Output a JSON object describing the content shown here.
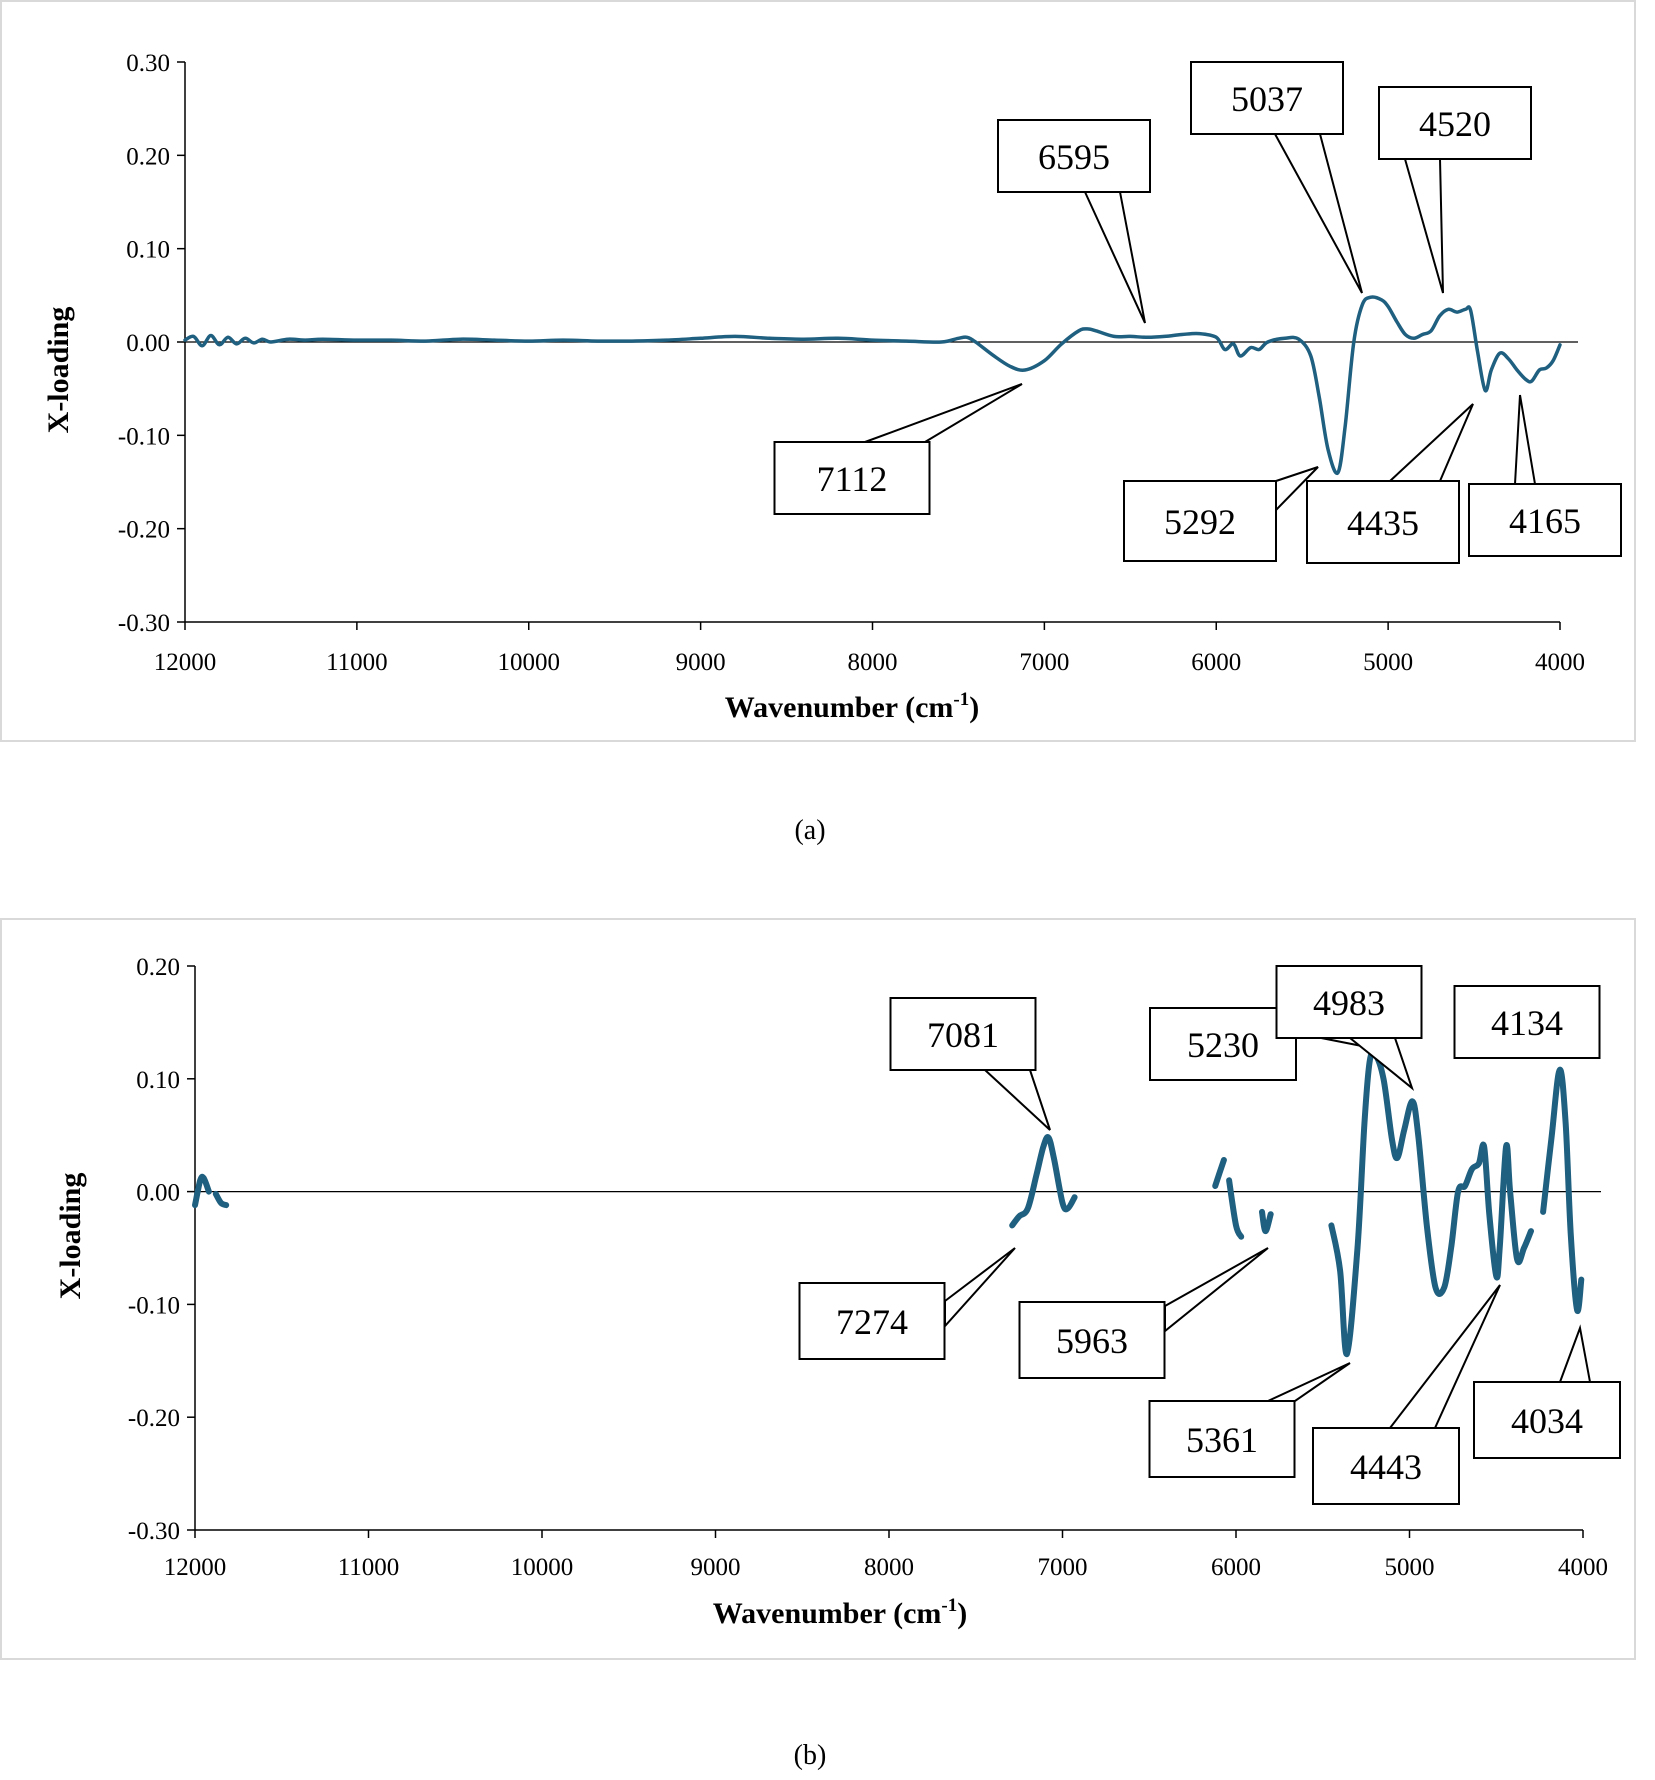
{
  "chart_data": [
    {
      "type": "line",
      "caption": "(a)",
      "xlabel": "Wavenumber (cm",
      "xlabel_sup": "-1",
      "xlabel_tail": ")",
      "ylabel": "X-loading",
      "xlim": [
        12000,
        4000
      ],
      "ylim": [
        -0.3,
        0.3
      ],
      "yticks": [
        "0.30",
        "0.20",
        "0.10",
        "0.00",
        "-0.10",
        "-0.20",
        "-0.30"
      ],
      "ytick_values": [
        0.3,
        0.2,
        0.1,
        0.0,
        -0.1,
        -0.2,
        -0.3
      ],
      "xticks": [
        "12000",
        "11000",
        "10000",
        "9000",
        "8000",
        "7000",
        "6000",
        "5000",
        "4000"
      ],
      "xtick_values": [
        12000,
        11000,
        10000,
        9000,
        8000,
        7000,
        6000,
        5000,
        4000
      ],
      "series": [
        {
          "name": "X-loading",
          "color": "#1f5f7f",
          "points": [
            [
              12000,
              0.002
            ],
            [
              11950,
              0.006
            ],
            [
              11900,
              -0.004
            ],
            [
              11850,
              0.007
            ],
            [
              11800,
              -0.003
            ],
            [
              11750,
              0.005
            ],
            [
              11700,
              -0.002
            ],
            [
              11650,
              0.004
            ],
            [
              11600,
              -0.001
            ],
            [
              11550,
              0.003
            ],
            [
              11500,
              0.0
            ],
            [
              11400,
              0.003
            ],
            [
              11300,
              0.002
            ],
            [
              11200,
              0.003
            ],
            [
              11000,
              0.002
            ],
            [
              10800,
              0.002
            ],
            [
              10600,
              0.001
            ],
            [
              10400,
              0.003
            ],
            [
              10200,
              0.002
            ],
            [
              10000,
              0.001
            ],
            [
              9800,
              0.002
            ],
            [
              9600,
              0.001
            ],
            [
              9400,
              0.001
            ],
            [
              9200,
              0.002
            ],
            [
              9000,
              0.004
            ],
            [
              8800,
              0.006
            ],
            [
              8600,
              0.004
            ],
            [
              8400,
              0.003
            ],
            [
              8200,
              0.004
            ],
            [
              8000,
              0.002
            ],
            [
              7800,
              0.001
            ],
            [
              7600,
              0.0
            ],
            [
              7500,
              0.004
            ],
            [
              7450,
              0.005
            ],
            [
              7400,
              0.0
            ],
            [
              7300,
              -0.014
            ],
            [
              7200,
              -0.026
            ],
            [
              7112,
              -0.03
            ],
            [
              7000,
              -0.02
            ],
            [
              6900,
              -0.002
            ],
            [
              6800,
              0.012
            ],
            [
              6750,
              0.014
            ],
            [
              6700,
              0.012
            ],
            [
              6595,
              0.006
            ],
            [
              6500,
              0.006
            ],
            [
              6400,
              0.005
            ],
            [
              6300,
              0.006
            ],
            [
              6200,
              0.008
            ],
            [
              6100,
              0.009
            ],
            [
              6000,
              0.005
            ],
            [
              5950,
              -0.008
            ],
            [
              5900,
              -0.002
            ],
            [
              5860,
              -0.015
            ],
            [
              5800,
              -0.006
            ],
            [
              5750,
              -0.008
            ],
            [
              5700,
              0.0
            ],
            [
              5600,
              0.004
            ],
            [
              5520,
              0.003
            ],
            [
              5450,
              -0.015
            ],
            [
              5400,
              -0.06
            ],
            [
              5350,
              -0.115
            ],
            [
              5292,
              -0.14
            ],
            [
              5250,
              -0.09
            ],
            [
              5200,
              0.0
            ],
            [
              5150,
              0.04
            ],
            [
              5100,
              0.048
            ],
            [
              5037,
              0.045
            ],
            [
              5000,
              0.038
            ],
            [
              4950,
              0.022
            ],
            [
              4900,
              0.008
            ],
            [
              4850,
              0.004
            ],
            [
              4800,
              0.008
            ],
            [
              4750,
              0.012
            ],
            [
              4700,
              0.028
            ],
            [
              4650,
              0.035
            ],
            [
              4600,
              0.032
            ],
            [
              4550,
              0.035
            ],
            [
              4520,
              0.034
            ],
            [
              4480,
              -0.01
            ],
            [
              4435,
              -0.052
            ],
            [
              4400,
              -0.03
            ],
            [
              4350,
              -0.012
            ],
            [
              4300,
              -0.018
            ],
            [
              4250,
              -0.03
            ],
            [
              4200,
              -0.04
            ],
            [
              4165,
              -0.042
            ],
            [
              4120,
              -0.03
            ],
            [
              4080,
              -0.028
            ],
            [
              4040,
              -0.02
            ],
            [
              4000,
              -0.003
            ]
          ]
        }
      ],
      "annotations": [
        {
          "label": "7112",
          "x": 7112,
          "y": -0.03
        },
        {
          "label": "6595",
          "x": 6595,
          "y": 0.006
        },
        {
          "label": "5037",
          "x": 5037,
          "y": 0.045
        },
        {
          "label": "4520",
          "x": 4520,
          "y": 0.034
        },
        {
          "label": "5292",
          "x": 5292,
          "y": -0.14
        },
        {
          "label": "4435",
          "x": 4435,
          "y": -0.052
        },
        {
          "label": "4165",
          "x": 4165,
          "y": -0.042
        }
      ]
    },
    {
      "type": "line",
      "caption": "(b)",
      "xlabel": "Wavenumber (cm",
      "xlabel_sup": "-1",
      "xlabel_tail": ")",
      "ylabel": "X-loading",
      "xlim": [
        12000,
        4000
      ],
      "ylim": [
        -0.3,
        0.2
      ],
      "yticks": [
        "0.20",
        "0.10",
        "0.00",
        "-0.10",
        "-0.20",
        "-0.30"
      ],
      "ytick_values": [
        0.2,
        0.1,
        0.0,
        -0.1,
        -0.2,
        -0.3
      ],
      "xticks": [
        "12000",
        "11000",
        "10000",
        "9000",
        "8000",
        "7000",
        "6000",
        "5000",
        "4000"
      ],
      "xtick_values": [
        12000,
        11000,
        10000,
        9000,
        8000,
        7000,
        6000,
        5000,
        4000
      ],
      "series": [
        {
          "name": "X-loading",
          "color": "#1f5f7f",
          "segments": [
            [
              [
                12000,
                -0.012
              ],
              [
                11970,
                0.01
              ],
              [
                11950,
                0.012
              ],
              [
                11920,
                0.0
              ]
            ],
            [
              [
                11880,
                -0.002
              ],
              [
                11850,
                -0.01
              ],
              [
                11820,
                -0.012
              ]
            ],
            [
              [
                7290,
                -0.03
              ],
              [
                7250,
                -0.022
              ],
              [
                7200,
                -0.015
              ],
              [
                7150,
                0.015
              ],
              [
                7110,
                0.04
              ],
              [
                7081,
                0.048
              ],
              [
                7050,
                0.03
              ],
              [
                7000,
                -0.01
              ],
              [
                6970,
                -0.015
              ],
              [
                6930,
                -0.005
              ]
            ],
            [
              [
                6120,
                0.005
              ],
              [
                6070,
                0.028
              ]
            ],
            [
              [
                6040,
                0.01
              ],
              [
                6000,
                -0.03
              ],
              [
                5970,
                -0.04
              ]
            ],
            [
              [
                5850,
                -0.018
              ],
              [
                5830,
                -0.035
              ],
              [
                5800,
                -0.02
              ]
            ],
            [
              [
                5450,
                -0.03
              ],
              [
                5400,
                -0.07
              ],
              [
                5361,
                -0.144
              ],
              [
                5300,
                -0.05
              ],
              [
                5260,
                0.06
              ],
              [
                5230,
                0.115
              ],
              [
                5200,
                0.122
              ],
              [
                5150,
                0.1
              ],
              [
                5100,
                0.045
              ],
              [
                5070,
                0.03
              ],
              [
                5030,
                0.055
              ],
              [
                4983,
                0.08
              ],
              [
                4950,
                0.05
              ],
              [
                4900,
                -0.03
              ],
              [
                4850,
                -0.085
              ],
              [
                4800,
                -0.085
              ],
              [
                4760,
                -0.05
              ],
              [
                4720,
                0.0
              ],
              [
                4680,
                0.005
              ],
              [
                4640,
                0.02
              ],
              [
                4600,
                0.025
              ],
              [
                4570,
                0.04
              ],
              [
                4540,
                -0.02
              ],
              [
                4500,
                -0.075
              ],
              [
                4480,
                -0.05
              ],
              [
                4443,
                0.04
              ],
              [
                4420,
                0.0
              ],
              [
                4380,
                -0.06
              ],
              [
                4340,
                -0.05
              ],
              [
                4300,
                -0.035
              ]
            ],
            [
              [
                4230,
                -0.018
              ],
              [
                4180,
                0.05
              ],
              [
                4134,
                0.108
              ],
              [
                4100,
                0.06
              ],
              [
                4070,
                -0.04
              ],
              [
                4034,
                -0.105
              ],
              [
                4010,
                -0.078
              ]
            ]
          ]
        }
      ],
      "annotations": [
        {
          "label": "7081",
          "x": 7081,
          "y": 0.048
        },
        {
          "label": "5230",
          "x": 5230,
          "y": 0.122
        },
        {
          "label": "4983",
          "x": 4983,
          "y": 0.08
        },
        {
          "label": "4134",
          "x": 4134,
          "y": 0.108
        },
        {
          "label": "7274",
          "x": 7274,
          "y": -0.05
        },
        {
          "label": "5963",
          "x": 5963,
          "y": -0.05
        },
        {
          "label": "5361",
          "x": 5361,
          "y": -0.15
        },
        {
          "label": "4443",
          "x": 4443,
          "y": -0.085
        },
        {
          "label": "4034",
          "x": 4034,
          "y": -0.115
        }
      ]
    }
  ]
}
